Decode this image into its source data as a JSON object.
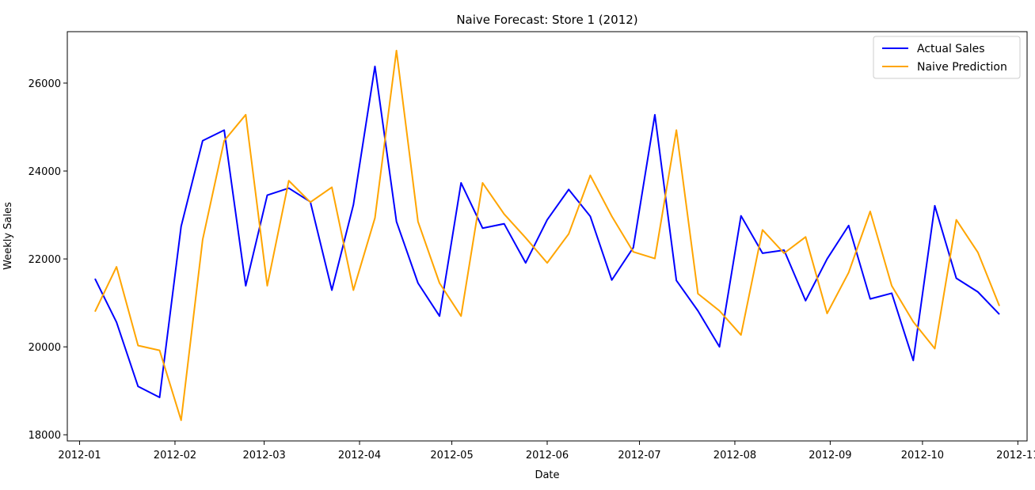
{
  "chart_data": {
    "type": "line",
    "title": "Naive Forecast: Store 1 (2012)",
    "xlabel": "Date",
    "ylabel": "Weekly Sales",
    "x_axis_kind": "date",
    "xlim": [
      "2011-12-28",
      "2012-11-04"
    ],
    "ylim": [
      17860,
      27170
    ],
    "x_ticks": [
      {
        "date": "2012-01-01",
        "label": "2012-01"
      },
      {
        "date": "2012-02-01",
        "label": "2012-02"
      },
      {
        "date": "2012-03-01",
        "label": "2012-03"
      },
      {
        "date": "2012-04-01",
        "label": "2012-04"
      },
      {
        "date": "2012-05-01",
        "label": "2012-05"
      },
      {
        "date": "2012-06-01",
        "label": "2012-06"
      },
      {
        "date": "2012-07-01",
        "label": "2012-07"
      },
      {
        "date": "2012-08-01",
        "label": "2012-08"
      },
      {
        "date": "2012-09-01",
        "label": "2012-09"
      },
      {
        "date": "2012-10-01",
        "label": "2012-10"
      },
      {
        "date": "2012-11-01",
        "label": "2012-11"
      }
    ],
    "y_ticks": [
      18000,
      20000,
      22000,
      24000,
      26000
    ],
    "grid": false,
    "legend_position": "top-right",
    "x": [
      "2012-01-06",
      "2012-01-13",
      "2012-01-20",
      "2012-01-27",
      "2012-02-03",
      "2012-02-10",
      "2012-02-17",
      "2012-02-24",
      "2012-03-02",
      "2012-03-09",
      "2012-03-16",
      "2012-03-23",
      "2012-03-30",
      "2012-04-06",
      "2012-04-13",
      "2012-04-20",
      "2012-04-27",
      "2012-05-04",
      "2012-05-11",
      "2012-05-18",
      "2012-05-25",
      "2012-06-01",
      "2012-06-08",
      "2012-06-15",
      "2012-06-22",
      "2012-06-29",
      "2012-07-06",
      "2012-07-13",
      "2012-07-20",
      "2012-07-27",
      "2012-08-03",
      "2012-08-10",
      "2012-08-17",
      "2012-08-24",
      "2012-08-31",
      "2012-09-07",
      "2012-09-14",
      "2012-09-21",
      "2012-09-28",
      "2012-10-05",
      "2012-10-12",
      "2012-10-19",
      "2012-10-26"
    ],
    "series": [
      {
        "name": "Actual Sales",
        "color": "#0000ff",
        "values": [
          21550,
          20560,
          19100,
          18850,
          22740,
          24690,
          24930,
          21390,
          23450,
          23610,
          23300,
          21290,
          23230,
          26380,
          22850,
          21450,
          20700,
          23730,
          22700,
          22800,
          21910,
          22890,
          23580,
          22970,
          21520,
          22260,
          25280,
          21510,
          20820,
          20000,
          22980,
          22130,
          22200,
          21050,
          22000,
          22760,
          21090,
          21220,
          19690,
          23210,
          21560,
          21250,
          20740
        ]
      },
      {
        "name": "Naive Prediction",
        "color": "#ffa500",
        "values": [
          20800,
          21820,
          20030,
          19920,
          18330,
          22440,
          24690,
          25280,
          21390,
          23780,
          23290,
          23630,
          21290,
          22930,
          26740,
          22850,
          21450,
          20700,
          23730,
          23020,
          22480,
          21910,
          22570,
          23900,
          22970,
          22160,
          22010,
          24930,
          21210,
          20820,
          20270,
          22660,
          22130,
          22500,
          20760,
          21690,
          23080,
          21390,
          20570,
          19960,
          22890,
          22150,
          20930
        ]
      }
    ]
  }
}
